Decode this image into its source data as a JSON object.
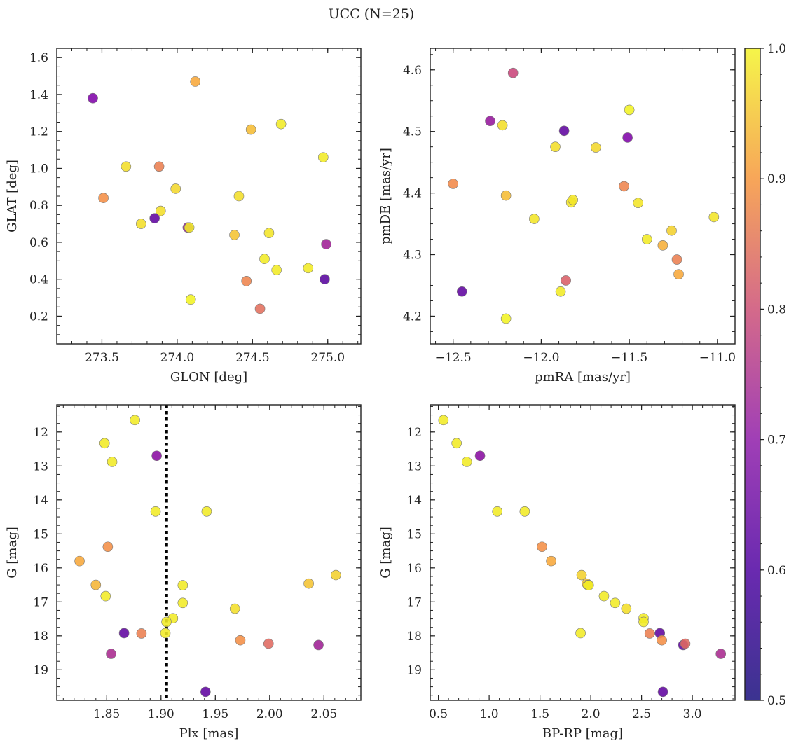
{
  "figure": {
    "title": "UCC (N=25)"
  },
  "colorbar": {
    "range": [
      0.5,
      1.0
    ],
    "ticks": [
      "0.5",
      "0.6",
      "0.7",
      "0.8",
      "0.9",
      "1.0"
    ],
    "colormap": "plasma"
  },
  "chart_data": [
    {
      "type": "scatter",
      "id": "glon-glat",
      "xlabel": "GLON [deg]",
      "ylabel": "GLAT [deg]",
      "xlim": [
        273.2,
        275.22
      ],
      "ylim": [
        0.05,
        1.65
      ],
      "y_inverted": false,
      "xticks": [
        273.5,
        274.0,
        274.5,
        275.0
      ],
      "xtick_labels": [
        "273.5",
        "274.0",
        "274.5",
        "275.0"
      ],
      "yticks": [
        0.2,
        0.4,
        0.6,
        0.8,
        1.0,
        1.2,
        1.4,
        1.6
      ],
      "ytick_labels": [
        "0.2",
        "0.4",
        "0.6",
        "0.8",
        "1.0",
        "1.2",
        "1.4",
        "1.6"
      ],
      "points": [
        {
          "x": 273.44,
          "y": 1.38,
          "c": 0.56
        },
        {
          "x": 274.12,
          "y": 1.47,
          "c": 0.88
        },
        {
          "x": 274.49,
          "y": 1.21,
          "c": 0.91
        },
        {
          "x": 274.69,
          "y": 1.24,
          "c": 0.98
        },
        {
          "x": 273.66,
          "y": 1.01,
          "c": 0.96
        },
        {
          "x": 273.88,
          "y": 1.01,
          "c": 0.81
        },
        {
          "x": 274.97,
          "y": 1.06,
          "c": 0.98
        },
        {
          "x": 273.51,
          "y": 0.84,
          "c": 0.84
        },
        {
          "x": 273.99,
          "y": 0.89,
          "c": 0.95
        },
        {
          "x": 274.41,
          "y": 0.85,
          "c": 0.96
        },
        {
          "x": 273.76,
          "y": 0.7,
          "c": 0.96
        },
        {
          "x": 273.89,
          "y": 0.77,
          "c": 0.96
        },
        {
          "x": 273.85,
          "y": 0.73,
          "c": 0.52
        },
        {
          "x": 274.07,
          "y": 0.68,
          "c": 0.6
        },
        {
          "x": 274.08,
          "y": 0.68,
          "c": 0.98
        },
        {
          "x": 274.38,
          "y": 0.64,
          "c": 0.92
        },
        {
          "x": 274.61,
          "y": 0.65,
          "c": 0.97
        },
        {
          "x": 274.99,
          "y": 0.59,
          "c": 0.62
        },
        {
          "x": 274.58,
          "y": 0.51,
          "c": 0.98
        },
        {
          "x": 274.66,
          "y": 0.45,
          "c": 0.98
        },
        {
          "x": 274.87,
          "y": 0.46,
          "c": 0.98
        },
        {
          "x": 274.98,
          "y": 0.4,
          "c": 0.51
        },
        {
          "x": 274.46,
          "y": 0.39,
          "c": 0.82
        },
        {
          "x": 274.09,
          "y": 0.29,
          "c": 0.99
        },
        {
          "x": 274.55,
          "y": 0.24,
          "c": 0.78
        }
      ]
    },
    {
      "type": "scatter",
      "id": "pmra-pmde",
      "xlabel": "pmRA [mas/yr]",
      "ylabel": "pmDE [mas/yr]",
      "xlim": [
        -12.63,
        -10.9
      ],
      "ylim": [
        4.155,
        4.635
      ],
      "y_inverted": false,
      "xticks": [
        -12.5,
        -12.0,
        -11.5,
        -11.0
      ],
      "xtick_labels": [
        "−12.5",
        "−12.0",
        "−11.5",
        "−11.0"
      ],
      "yticks": [
        4.2,
        4.3,
        4.4,
        4.5,
        4.6
      ],
      "ytick_labels": [
        "4.2",
        "4.3",
        "4.4",
        "4.5",
        "4.6"
      ],
      "points": [
        {
          "x": -12.16,
          "y": 4.595,
          "c": 0.7
        },
        {
          "x": -12.29,
          "y": 4.517,
          "c": 0.6
        },
        {
          "x": -12.22,
          "y": 4.51,
          "c": 0.96
        },
        {
          "x": -11.87,
          "y": 4.501,
          "c": 0.52
        },
        {
          "x": -11.5,
          "y": 4.535,
          "c": 0.99
        },
        {
          "x": -11.92,
          "y": 4.475,
          "c": 0.96
        },
        {
          "x": -11.69,
          "y": 4.474,
          "c": 0.95
        },
        {
          "x": -11.51,
          "y": 4.49,
          "c": 0.56
        },
        {
          "x": -12.5,
          "y": 4.415,
          "c": 0.83
        },
        {
          "x": -11.53,
          "y": 4.411,
          "c": 0.82
        },
        {
          "x": -12.2,
          "y": 4.396,
          "c": 0.91
        },
        {
          "x": -11.83,
          "y": 4.385,
          "c": 0.97
        },
        {
          "x": -11.82,
          "y": 4.389,
          "c": 0.97
        },
        {
          "x": -11.45,
          "y": 4.384,
          "c": 0.97
        },
        {
          "x": -12.04,
          "y": 4.358,
          "c": 0.97
        },
        {
          "x": -11.02,
          "y": 4.361,
          "c": 0.97
        },
        {
          "x": -11.26,
          "y": 4.339,
          "c": 0.94
        },
        {
          "x": -11.4,
          "y": 4.325,
          "c": 0.98
        },
        {
          "x": -11.31,
          "y": 4.315,
          "c": 0.89
        },
        {
          "x": -11.23,
          "y": 4.292,
          "c": 0.81
        },
        {
          "x": -11.22,
          "y": 4.268,
          "c": 0.88
        },
        {
          "x": -11.86,
          "y": 4.258,
          "c": 0.75
        },
        {
          "x": -11.89,
          "y": 4.24,
          "c": 0.98
        },
        {
          "x": -12.45,
          "y": 4.24,
          "c": 0.52
        },
        {
          "x": -12.2,
          "y": 4.196,
          "c": 0.99
        }
      ]
    },
    {
      "type": "scatter",
      "id": "plx-g",
      "xlabel": "Plx [mas]",
      "ylabel": "G [mag]",
      "xlim": [
        1.804,
        2.084
      ],
      "ylim": [
        11.2,
        19.9
      ],
      "y_inverted": true,
      "vline": {
        "x": 1.905,
        "style": "dotted"
      },
      "xticks": [
        1.85,
        1.9,
        1.95,
        2.0,
        2.05
      ],
      "xtick_labels": [
        "1.85",
        "1.90",
        "1.95",
        "2.00",
        "2.05"
      ],
      "yticks": [
        12,
        13,
        14,
        15,
        16,
        17,
        18,
        19
      ],
      "ytick_labels": [
        "12",
        "13",
        "14",
        "15",
        "16",
        "17",
        "18",
        "19"
      ],
      "points": [
        {
          "x": 1.876,
          "y": 11.65,
          "c": 0.98
        },
        {
          "x": 1.848,
          "y": 12.33,
          "c": 0.98
        },
        {
          "x": 1.855,
          "y": 12.88,
          "c": 0.98
        },
        {
          "x": 1.896,
          "y": 12.7,
          "c": 0.58
        },
        {
          "x": 1.895,
          "y": 14.34,
          "c": 0.98
        },
        {
          "x": 1.942,
          "y": 14.34,
          "c": 0.98
        },
        {
          "x": 1.851,
          "y": 15.38,
          "c": 0.84
        },
        {
          "x": 1.825,
          "y": 15.8,
          "c": 0.88
        },
        {
          "x": 1.84,
          "y": 16.5,
          "c": 0.9
        },
        {
          "x": 1.849,
          "y": 16.83,
          "c": 0.98
        },
        {
          "x": 1.92,
          "y": 16.51,
          "c": 0.98
        },
        {
          "x": 1.92,
          "y": 17.03,
          "c": 0.98
        },
        {
          "x": 2.036,
          "y": 16.46,
          "c": 0.92
        },
        {
          "x": 2.061,
          "y": 16.21,
          "c": 0.94
        },
        {
          "x": 1.968,
          "y": 17.2,
          "c": 0.96
        },
        {
          "x": 1.911,
          "y": 17.48,
          "c": 0.98
        },
        {
          "x": 1.905,
          "y": 17.59,
          "c": 0.98
        },
        {
          "x": 1.904,
          "y": 17.92,
          "c": 0.98
        },
        {
          "x": 1.866,
          "y": 17.92,
          "c": 0.52
        },
        {
          "x": 1.882,
          "y": 17.93,
          "c": 0.81
        },
        {
          "x": 1.973,
          "y": 18.13,
          "c": 0.84
        },
        {
          "x": 1.999,
          "y": 18.23,
          "c": 0.77
        },
        {
          "x": 2.045,
          "y": 18.27,
          "c": 0.62
        },
        {
          "x": 1.854,
          "y": 18.53,
          "c": 0.64
        },
        {
          "x": 1.941,
          "y": 19.65,
          "c": 0.52
        }
      ]
    },
    {
      "type": "scatter",
      "id": "bprp-g",
      "xlabel": "BP-RP [mag]",
      "ylabel": "G [mag]",
      "xlim": [
        0.42,
        3.42
      ],
      "ylim": [
        11.2,
        19.9
      ],
      "y_inverted": true,
      "xticks": [
        0.5,
        1.0,
        1.5,
        2.0,
        2.5,
        3.0
      ],
      "xtick_labels": [
        "0.5",
        "1.0",
        "1.5",
        "2.0",
        "2.5",
        "3.0"
      ],
      "yticks": [
        12,
        13,
        14,
        15,
        16,
        17,
        18,
        19
      ],
      "ytick_labels": [
        "12",
        "13",
        "14",
        "15",
        "16",
        "17",
        "18",
        "19"
      ],
      "points": [
        {
          "x": 0.55,
          "y": 11.65,
          "c": 0.98
        },
        {
          "x": 0.68,
          "y": 12.33,
          "c": 0.98
        },
        {
          "x": 0.78,
          "y": 12.88,
          "c": 0.98
        },
        {
          "x": 0.91,
          "y": 12.7,
          "c": 0.58
        },
        {
          "x": 1.08,
          "y": 14.34,
          "c": 0.98
        },
        {
          "x": 1.35,
          "y": 14.34,
          "c": 0.98
        },
        {
          "x": 1.52,
          "y": 15.38,
          "c": 0.84
        },
        {
          "x": 1.61,
          "y": 15.8,
          "c": 0.88
        },
        {
          "x": 1.91,
          "y": 16.21,
          "c": 0.94
        },
        {
          "x": 1.96,
          "y": 16.46,
          "c": 0.92
        },
        {
          "x": 1.97,
          "y": 16.5,
          "c": 0.96
        },
        {
          "x": 1.98,
          "y": 16.51,
          "c": 0.98
        },
        {
          "x": 2.13,
          "y": 16.83,
          "c": 0.98
        },
        {
          "x": 2.24,
          "y": 17.03,
          "c": 0.98
        },
        {
          "x": 2.35,
          "y": 17.2,
          "c": 0.96
        },
        {
          "x": 2.52,
          "y": 17.48,
          "c": 0.98
        },
        {
          "x": 2.52,
          "y": 17.59,
          "c": 0.98
        },
        {
          "x": 1.9,
          "y": 17.92,
          "c": 0.98
        },
        {
          "x": 2.68,
          "y": 17.92,
          "c": 0.52
        },
        {
          "x": 2.58,
          "y": 17.93,
          "c": 0.81
        },
        {
          "x": 2.7,
          "y": 18.13,
          "c": 0.84
        },
        {
          "x": 2.91,
          "y": 18.27,
          "c": 0.52
        },
        {
          "x": 2.93,
          "y": 18.23,
          "c": 0.77
        },
        {
          "x": 3.28,
          "y": 18.53,
          "c": 0.64
        },
        {
          "x": 2.71,
          "y": 19.65,
          "c": 0.52
        }
      ]
    }
  ]
}
